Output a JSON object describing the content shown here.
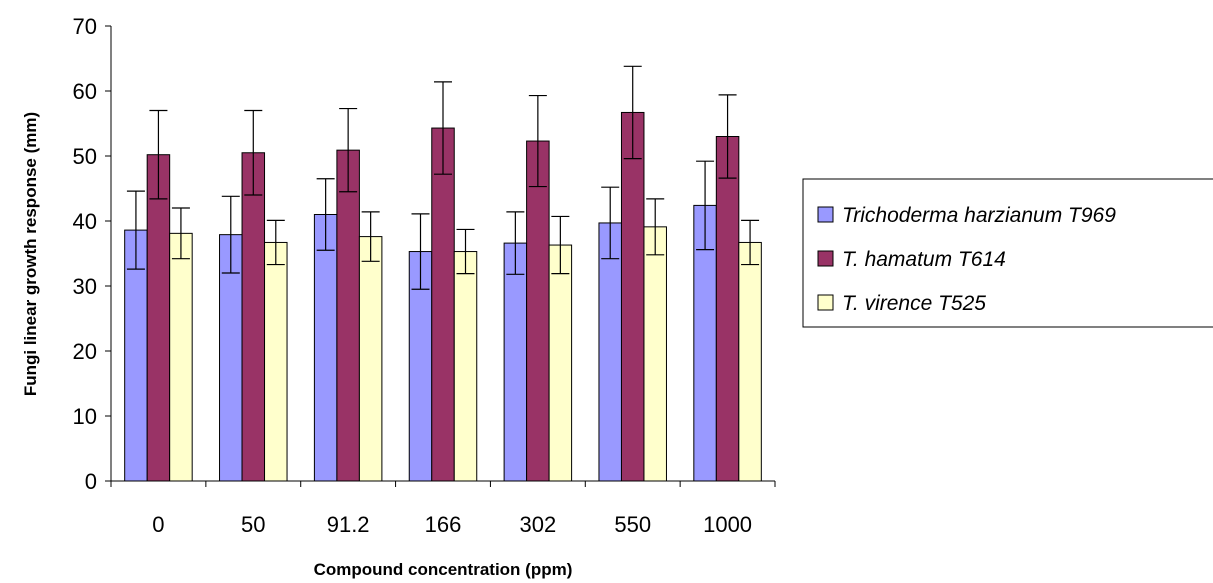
{
  "chart_data": {
    "type": "bar",
    "xlabel": "Compound concentration (ppm)",
    "ylabel": "Fungi linear growth response (mm)",
    "ylim": [
      0,
      70
    ],
    "yticks": [
      0,
      10,
      20,
      30,
      40,
      50,
      60,
      70
    ],
    "categories": [
      "0",
      "50",
      "91.2",
      "166",
      "302",
      "550",
      "1000"
    ],
    "grid": false,
    "legend_position": "right",
    "series": [
      {
        "name": "Trichoderma harzianum T969",
        "color": "#9999ff",
        "values": [
          38.6,
          37.9,
          41.0,
          35.3,
          36.6,
          39.7,
          42.4
        ],
        "errors": [
          6.0,
          5.9,
          5.5,
          5.8,
          4.8,
          5.5,
          6.8
        ]
      },
      {
        "name": "T. hamatum T614",
        "color": "#993366",
        "values": [
          50.2,
          50.5,
          50.9,
          54.3,
          52.3,
          56.7,
          53.0
        ],
        "errors": [
          6.8,
          6.5,
          6.4,
          7.1,
          7.0,
          7.1,
          6.4
        ]
      },
      {
        "name": "T. virence T525",
        "color": "#ffffcc",
        "values": [
          38.1,
          36.7,
          37.6,
          35.3,
          36.3,
          39.1,
          36.7
        ],
        "errors": [
          3.9,
          3.4,
          3.8,
          3.4,
          4.4,
          4.3,
          3.4
        ]
      }
    ]
  }
}
